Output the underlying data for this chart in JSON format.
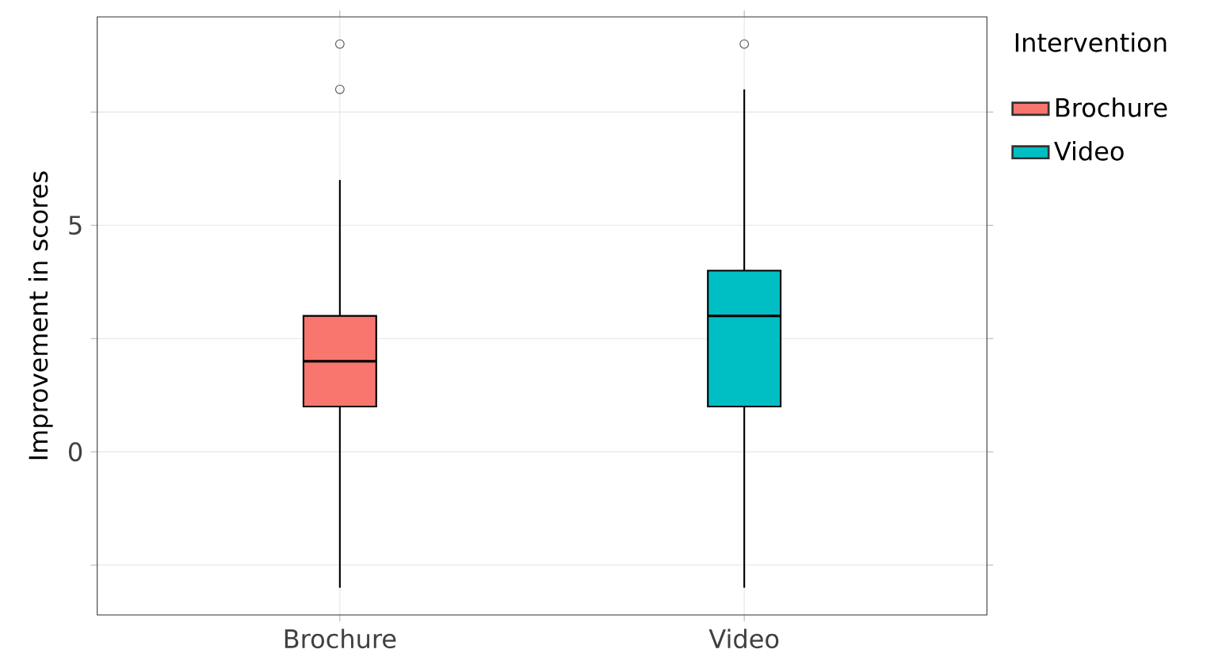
{
  "chart_data": {
    "type": "box",
    "ylabel": "Improvement in scores",
    "legend_title": "Intervention",
    "categories": [
      "Brochure",
      "Video"
    ],
    "ylim": [
      -3.6,
      9.6
    ],
    "yticks": [
      {
        "value": -2.5,
        "label": null
      },
      0,
      {
        "value": 2.5,
        "label": null
      },
      5,
      {
        "value": 7.5,
        "label": null
      }
    ],
    "grid": true,
    "legend": "right",
    "series": [
      {
        "name": "Brochure",
        "color": "#f8766d",
        "boxes": [
          {
            "low": -3,
            "q1": 1,
            "median": 2,
            "q3": 3,
            "high": 6,
            "outliers": [
              8,
              9
            ]
          },
          null
        ]
      },
      {
        "name": "Video",
        "color": "#00bfc4",
        "boxes": [
          null,
          {
            "low": -3,
            "q1": 1,
            "median": 3,
            "q3": 4,
            "high": 8,
            "outliers": [
              9
            ]
          }
        ]
      }
    ]
  }
}
